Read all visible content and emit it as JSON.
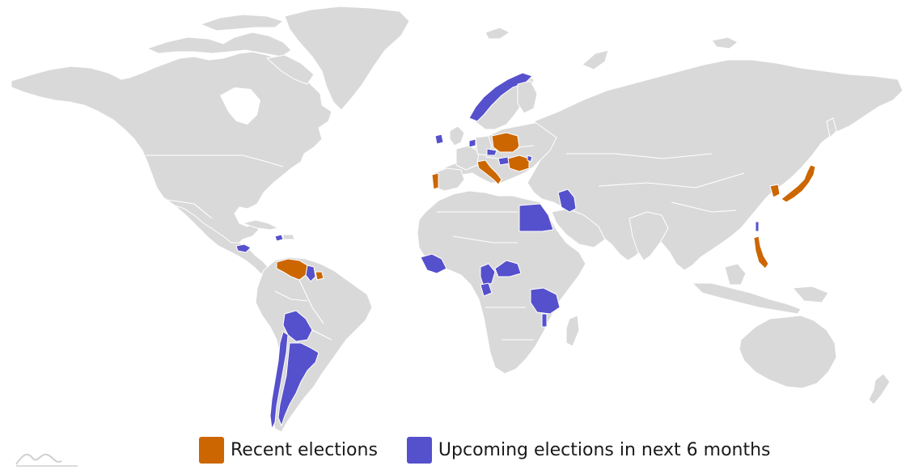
{
  "legend": {
    "recent_label": "Recent elections",
    "upcoming_label": "Upcoming elections in next 6 months"
  },
  "colors": {
    "land": "#d9d9d9",
    "border": "#ffffff",
    "recent": "#cc6600",
    "upcoming": "#5550cc"
  },
  "map": {
    "projection": "miller-like world",
    "recent_elections": [
      "Poland",
      "Romania",
      "Italy",
      "Portugal",
      "Japan",
      "South Korea",
      "Philippines",
      "Venezuela",
      "Suriname",
      "Taiwan"
    ],
    "upcoming_elections": [
      "Norway",
      "Ireland",
      "Netherlands",
      "Czechia",
      "Hungary",
      "Moldova",
      "Egypt",
      "Iraq",
      "Ivory Coast",
      "Cameroon",
      "Central African Republic",
      "Gabon",
      "Tanzania",
      "Malawi",
      "Bolivia",
      "Chile",
      "Argentina",
      "Guyana",
      "Honduras",
      "Haiti"
    ]
  }
}
